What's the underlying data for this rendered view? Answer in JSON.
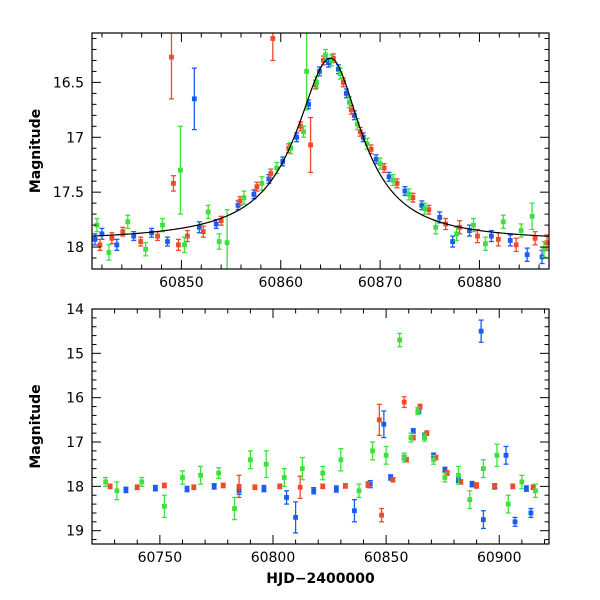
{
  "colors": {
    "blue": "#1a5cf0",
    "red": "#f04a2a",
    "green": "#3ee03e",
    "model": "#000000"
  },
  "chart_data": [
    {
      "type": "scatter",
      "panel": "top",
      "xlabel": "",
      "ylabel": "Magnitude",
      "xlim": [
        60841,
        60887
      ],
      "ylim": [
        18.2,
        16.05
      ],
      "y_inverted": true,
      "xticks": [
        60850,
        60860,
        60870,
        60880
      ],
      "yticks": [
        16.5,
        17,
        17.5,
        18
      ],
      "xtick_labels": [
        "60850",
        "60860",
        "60870",
        "60880"
      ],
      "ytick_labels": [
        "16.5",
        "17",
        "17.5",
        "18"
      ],
      "model_curve": {
        "baseline_mag": 17.95,
        "peak_mag": 16.28,
        "t0": 60865.0,
        "rise_width_days": 4.2,
        "decay_width_days": 3.8
      },
      "series": [
        {
          "color_key": "blue",
          "points": [
            [
              60841.3,
              17.93,
              0.05
            ],
            [
              60842.0,
              17.88,
              0.05
            ],
            [
              60843.5,
              17.98,
              0.05
            ],
            [
              60845.2,
              17.9,
              0.04
            ],
            [
              60847.0,
              17.87,
              0.04
            ],
            [
              60848.6,
              17.95,
              0.04
            ],
            [
              60851.3,
              16.65,
              0.28
            ],
            [
              60851.8,
              17.82,
              0.05
            ],
            [
              60853.5,
              17.79,
              0.04
            ],
            [
              60855.7,
              17.62,
              0.04
            ],
            [
              60857.3,
              17.52,
              0.04
            ],
            [
              60858.8,
              17.38,
              0.04
            ],
            [
              60860.2,
              17.22,
              0.04
            ],
            [
              60861.6,
              17.0,
              0.04
            ],
            [
              60862.8,
              16.7,
              0.04
            ],
            [
              60863.9,
              16.4,
              0.04
            ],
            [
              60864.8,
              16.32,
              0.04
            ],
            [
              60865.8,
              16.38,
              0.04
            ],
            [
              60866.6,
              16.6,
              0.04
            ],
            [
              60867.4,
              16.8,
              0.04
            ],
            [
              60868.3,
              17.0,
              0.04
            ],
            [
              60869.6,
              17.2,
              0.04
            ],
            [
              60870.9,
              17.36,
              0.04
            ],
            [
              60872.5,
              17.49,
              0.04
            ],
            [
              60874.2,
              17.62,
              0.04
            ],
            [
              60876.0,
              17.73,
              0.05
            ],
            [
              60877.3,
              17.95,
              0.05
            ],
            [
              60879.0,
              17.85,
              0.05
            ],
            [
              60881.2,
              17.9,
              0.05
            ],
            [
              60883.1,
              17.94,
              0.05
            ],
            [
              60884.8,
              18.07,
              0.06
            ],
            [
              60886.3,
              18.09,
              0.06
            ]
          ]
        },
        {
          "color_key": "red",
          "points": [
            [
              60841.8,
              17.98,
              0.05
            ],
            [
              60843.0,
              17.92,
              0.05
            ],
            [
              60844.1,
              17.86,
              0.04
            ],
            [
              60845.9,
              17.95,
              0.04
            ],
            [
              60847.6,
              17.9,
              0.04
            ],
            [
              60849.0,
              16.27,
              0.38
            ],
            [
              60849.2,
              17.42,
              0.07
            ],
            [
              60849.7,
              17.98,
              0.05
            ],
            [
              60850.6,
              17.9,
              0.05
            ],
            [
              60852.2,
              17.86,
              0.05
            ],
            [
              60854.0,
              17.76,
              0.04
            ],
            [
              60855.9,
              17.58,
              0.04
            ],
            [
              60857.6,
              17.45,
              0.04
            ],
            [
              60859.0,
              17.33,
              0.04
            ],
            [
              60859.2,
              16.1,
              0.2
            ],
            [
              60860.8,
              17.1,
              0.04
            ],
            [
              60862.0,
              16.9,
              0.04
            ],
            [
              60863.0,
              17.07,
              0.25
            ],
            [
              60863.5,
              16.52,
              0.04
            ],
            [
              60864.3,
              16.3,
              0.04
            ],
            [
              60865.3,
              16.28,
              0.04
            ],
            [
              60866.3,
              16.5,
              0.04
            ],
            [
              60867.1,
              16.75,
              0.04
            ],
            [
              60868.0,
              16.95,
              0.04
            ],
            [
              60869.1,
              17.11,
              0.04
            ],
            [
              60870.4,
              17.28,
              0.04
            ],
            [
              60871.7,
              17.42,
              0.04
            ],
            [
              60873.3,
              17.55,
              0.04
            ],
            [
              60874.9,
              17.66,
              0.04
            ],
            [
              60876.6,
              17.79,
              0.05
            ],
            [
              60878.0,
              17.82,
              0.06
            ],
            [
              60879.8,
              17.9,
              0.06
            ],
            [
              60881.9,
              17.93,
              0.06
            ],
            [
              60883.7,
              17.98,
              0.06
            ],
            [
              60885.6,
              17.92,
              0.06
            ],
            [
              60886.8,
              17.96,
              0.07
            ]
          ]
        },
        {
          "color_key": "green",
          "points": [
            [
              60841.5,
              17.8,
              0.06
            ],
            [
              60842.7,
              18.05,
              0.07
            ],
            [
              60844.6,
              17.77,
              0.06
            ],
            [
              60846.4,
              18.02,
              0.06
            ],
            [
              60848.1,
              17.8,
              0.06
            ],
            [
              60849.9,
              17.3,
              0.4
            ],
            [
              60850.3,
              17.98,
              0.07
            ],
            [
              60852.7,
              17.68,
              0.06
            ],
            [
              60853.8,
              17.95,
              0.07
            ],
            [
              60854.6,
              17.96,
              0.3
            ],
            [
              60856.3,
              17.55,
              0.06
            ],
            [
              60858.1,
              17.42,
              0.06
            ],
            [
              60859.6,
              17.28,
              0.05
            ],
            [
              60861.0,
              17.1,
              0.05
            ],
            [
              60862.3,
              16.95,
              0.05
            ],
            [
              60862.6,
              16.4,
              0.35
            ],
            [
              60863.6,
              16.5,
              0.05
            ],
            [
              60864.5,
              16.25,
              0.05
            ],
            [
              60865.1,
              16.3,
              0.05
            ],
            [
              60866.0,
              16.42,
              0.05
            ],
            [
              60866.9,
              16.68,
              0.05
            ],
            [
              60867.7,
              16.88,
              0.05
            ],
            [
              60868.7,
              17.06,
              0.05
            ],
            [
              60870.0,
              17.24,
              0.05
            ],
            [
              60871.3,
              17.39,
              0.05
            ],
            [
              60872.9,
              17.52,
              0.05
            ],
            [
              60874.5,
              17.65,
              0.05
            ],
            [
              60875.6,
              17.82,
              0.06
            ],
            [
              60877.7,
              17.88,
              0.06
            ],
            [
              60879.4,
              17.8,
              0.06
            ],
            [
              60880.6,
              17.97,
              0.06
            ],
            [
              60882.4,
              17.77,
              0.06
            ],
            [
              60884.2,
              17.85,
              0.06
            ],
            [
              60885.3,
              17.72,
              0.12
            ],
            [
              60886.5,
              18.02,
              0.07
            ]
          ]
        }
      ]
    },
    {
      "type": "scatter",
      "panel": "bottom",
      "xlabel": "HJD−2400000",
      "ylabel": "Magnitude",
      "xlim": [
        60720,
        60922
      ],
      "ylim": [
        19.3,
        14
      ],
      "y_inverted": true,
      "xticks": [
        60750,
        60800,
        60850,
        60900
      ],
      "yticks": [
        14,
        15,
        16,
        17,
        18,
        19
      ],
      "xtick_labels": [
        "60750",
        "60800",
        "60850",
        "60900"
      ],
      "ytick_labels": [
        "14",
        "15",
        "16",
        "17",
        "18",
        "19"
      ],
      "series": [
        {
          "color_key": "blue",
          "points": [
            [
              60735,
              18.08,
              0.06
            ],
            [
              60748,
              18.04,
              0.06
            ],
            [
              60762,
              18.06,
              0.06
            ],
            [
              60774,
              18.0,
              0.06
            ],
            [
              60785,
              18.1,
              0.08
            ],
            [
              60796,
              18.05,
              0.07
            ],
            [
              60806,
              18.25,
              0.15
            ],
            [
              60810,
              18.7,
              0.35
            ],
            [
              60818,
              18.1,
              0.07
            ],
            [
              60828,
              18.06,
              0.07
            ],
            [
              60836,
              18.55,
              0.25
            ],
            [
              60843,
              17.95,
              0.08
            ],
            [
              60849,
              16.6,
              0.3
            ],
            [
              60852,
              17.8,
              0.06
            ],
            [
              60858,
              17.35,
              0.05
            ],
            [
              60862,
              16.75,
              0.05
            ],
            [
              60864.5,
              16.3,
              0.05
            ],
            [
              60867,
              16.85,
              0.05
            ],
            [
              60871,
              17.3,
              0.05
            ],
            [
              60876,
              17.62,
              0.05
            ],
            [
              60882,
              17.85,
              0.06
            ],
            [
              60888,
              17.95,
              0.06
            ],
            [
              60892,
              14.5,
              0.25
            ],
            [
              60893,
              18.75,
              0.2
            ],
            [
              60898,
              18.0,
              0.06
            ],
            [
              60903,
              17.3,
              0.2
            ],
            [
              60907,
              18.8,
              0.1
            ],
            [
              60912,
              18.05,
              0.06
            ],
            [
              60914,
              18.6,
              0.1
            ]
          ]
        },
        {
          "color_key": "red",
          "points": [
            [
              60728,
              18.0,
              0.05
            ],
            [
              60740,
              18.02,
              0.05
            ],
            [
              60752,
              17.98,
              0.05
            ],
            [
              60765,
              18.02,
              0.05
            ],
            [
              60778,
              17.98,
              0.05
            ],
            [
              60785,
              18.0,
              0.25
            ],
            [
              60792,
              18.02,
              0.05
            ],
            [
              60803,
              18.0,
              0.05
            ],
            [
              60812,
              18.02,
              0.25
            ],
            [
              60822,
              18.0,
              0.05
            ],
            [
              60832,
              17.99,
              0.05
            ],
            [
              60842,
              17.96,
              0.06
            ],
            [
              60847,
              16.5,
              0.35
            ],
            [
              60848,
              18.65,
              0.15
            ],
            [
              60853,
              17.85,
              0.05
            ],
            [
              60858,
              16.1,
              0.12
            ],
            [
              60859,
              17.4,
              0.05
            ],
            [
              60862,
              16.9,
              0.05
            ],
            [
              60865,
              16.2,
              0.05
            ],
            [
              60868,
              16.8,
              0.05
            ],
            [
              60872,
              17.35,
              0.05
            ],
            [
              60877,
              17.7,
              0.05
            ],
            [
              60883,
              17.9,
              0.05
            ],
            [
              60890,
              17.98,
              0.06
            ],
            [
              60898,
              17.99,
              0.05
            ],
            [
              60906,
              18.0,
              0.05
            ],
            [
              60915,
              18.02,
              0.05
            ]
          ]
        },
        {
          "color_key": "green",
          "points": [
            [
              60726,
              17.9,
              0.1
            ],
            [
              60731,
              18.1,
              0.2
            ],
            [
              60742,
              17.9,
              0.1
            ],
            [
              60752,
              18.45,
              0.25
            ],
            [
              60760,
              17.8,
              0.15
            ],
            [
              60768,
              17.75,
              0.2
            ],
            [
              60776,
              17.7,
              0.12
            ],
            [
              60783,
              18.5,
              0.25
            ],
            [
              60790,
              17.4,
              0.2
            ],
            [
              60797,
              17.5,
              0.3
            ],
            [
              60805,
              17.8,
              0.2
            ],
            [
              60813,
              17.6,
              0.25
            ],
            [
              60822,
              17.7,
              0.15
            ],
            [
              60830,
              17.4,
              0.25
            ],
            [
              60838,
              18.1,
              0.15
            ],
            [
              60844,
              17.2,
              0.2
            ],
            [
              60850,
              17.3,
              0.2
            ],
            [
              60856,
              14.7,
              0.15
            ],
            [
              60858,
              17.35,
              0.1
            ],
            [
              60861,
              16.9,
              0.1
            ],
            [
              60864,
              16.3,
              0.08
            ],
            [
              60867,
              16.9,
              0.08
            ],
            [
              60871,
              17.4,
              0.1
            ],
            [
              60876,
              17.8,
              0.1
            ],
            [
              60882,
              17.75,
              0.2
            ],
            [
              60887,
              18.3,
              0.2
            ],
            [
              60893,
              17.6,
              0.2
            ],
            [
              60899,
              17.3,
              0.25
            ],
            [
              60904,
              18.4,
              0.2
            ],
            [
              60910,
              17.9,
              0.15
            ],
            [
              60916,
              18.1,
              0.15
            ]
          ]
        }
      ]
    }
  ]
}
